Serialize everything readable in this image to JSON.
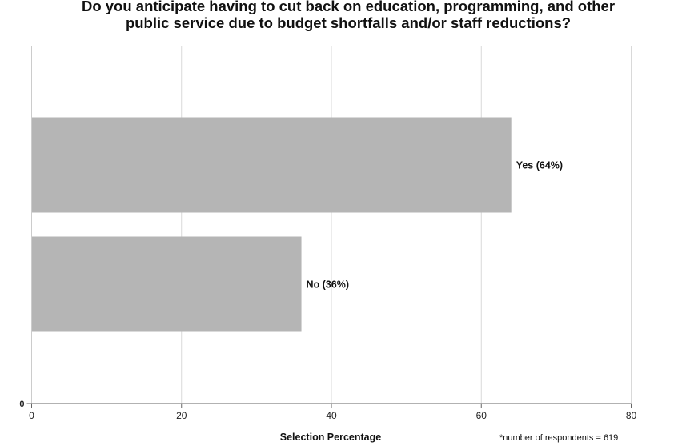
{
  "chart_data": {
    "type": "bar",
    "orientation": "horizontal",
    "title_lines": [
      "Do you anticipate having to cut back on education, programming, and other",
      "public service due to budget shortfalls and/or staff reductions?"
    ],
    "categories": [
      "Yes",
      "No"
    ],
    "values": [
      64,
      36
    ],
    "data_labels": [
      "Yes (64%)",
      "No (36%)"
    ],
    "xlabel": "Selection Percentage",
    "ylabel": "",
    "xlim": [
      0,
      80
    ],
    "xticks": [
      0,
      20,
      40,
      60,
      80
    ],
    "yticks": [
      "0"
    ],
    "grid": "vertical",
    "bar_color": "#b5b5b5",
    "footnote": "*number of respondents = 619"
  }
}
